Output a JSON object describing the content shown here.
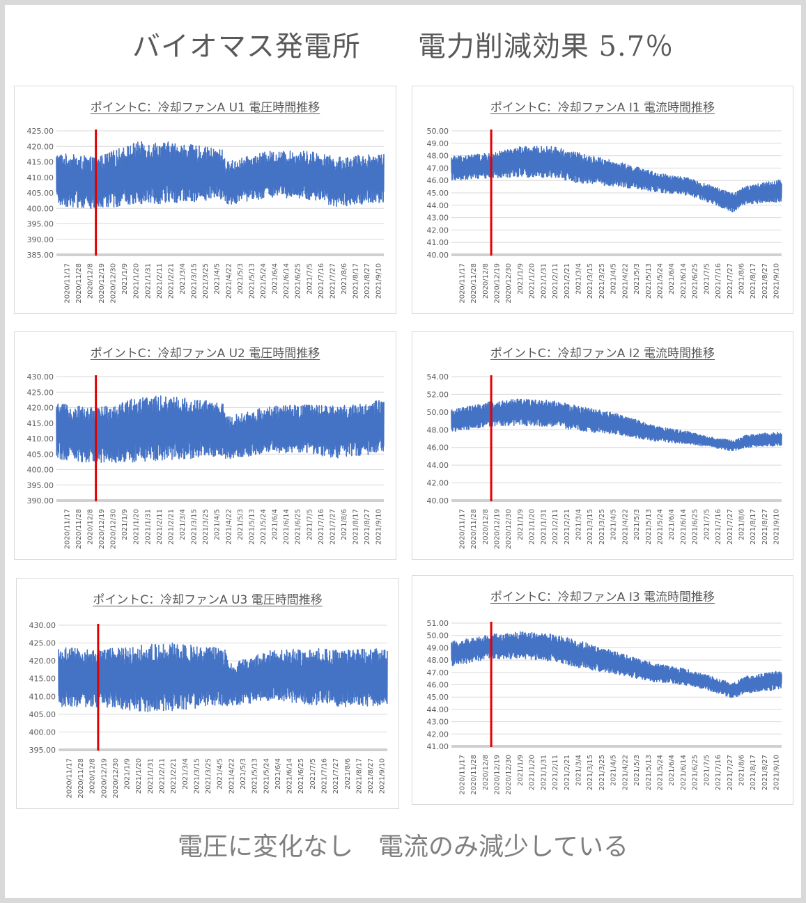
{
  "page": {
    "title": "バイオマス発電所　　電力削減効果 5.7％",
    "footer": "電圧に変化なし　電流のみ減少している"
  },
  "colors": {
    "series": "#4472c4",
    "marker": "#e00000",
    "grid": "#d9d9d9",
    "text": "#595959"
  },
  "chart_data": [
    {
      "type": "line",
      "title": "ポイントC：冷却ファンA U1 電圧時間推移",
      "yticks": [
        "385.00",
        "390.00",
        "395.00",
        "400.00",
        "405.00",
        "410.00",
        "415.00",
        "420.00",
        "425.00"
      ],
      "ylim": [
        385,
        425
      ],
      "x_tick_labels": [
        "2020/11/17",
        "2020/11/28",
        "2020/12/8",
        "2020/12/19",
        "2020/12/30",
        "2021/1/9",
        "2021/1/20",
        "2021/1/31",
        "2021/2/11",
        "2021/2/21",
        "2021/3/4",
        "2021/3/15",
        "2021/3/25",
        "2021/4/5",
        "2021/4/22",
        "2021/5/3",
        "2021/5/13",
        "2021/5/24",
        "2021/6/4",
        "2021/6/14",
        "2021/6/25",
        "2021/7/5",
        "2021/7/16",
        "2021/7/27",
        "2021/8/6",
        "2021/8/17",
        "2021/8/27",
        "2021/9/10"
      ],
      "marker_date": "2020/12/24",
      "series": [
        {
          "x": [
            "2020/11/17",
            "2020/12/24",
            "2021/1/31",
            "2021/3/4",
            "2021/4/22",
            "2021/4/25",
            "2021/6/4",
            "2021/7/16",
            "2021/8/6",
            "2021/9/20"
          ],
          "values": [
            409.5,
            408,
            411.5,
            411.5,
            411,
            408,
            411,
            410.5,
            408.5,
            410
          ],
          "range": [
            17,
            17,
            20,
            20,
            16,
            14,
            15,
            16,
            16,
            16
          ]
        }
      ]
    },
    {
      "type": "line",
      "title": "ポイントC：冷却ファンA I1 電流時間推移",
      "yticks": [
        "40.00",
        "41.00",
        "42.00",
        "43.00",
        "44.00",
        "45.00",
        "46.00",
        "47.00",
        "48.00",
        "49.00",
        "50.00"
      ],
      "ylim": [
        40,
        50
      ],
      "x_tick_labels": [
        "2020/11/17",
        "2020/11/28",
        "2020/12/8",
        "2020/12/19",
        "2020/12/30",
        "2021/1/9",
        "2021/1/20",
        "2021/1/31",
        "2021/2/11",
        "2021/2/21",
        "2021/3/4",
        "2021/3/15",
        "2021/3/25",
        "2021/4/5",
        "2021/4/22",
        "2021/5/3",
        "2021/5/13",
        "2021/5/24",
        "2021/6/4",
        "2021/6/14",
        "2021/6/25",
        "2021/7/5",
        "2021/7/16",
        "2021/7/27",
        "2021/8/6",
        "2021/8/17",
        "2021/8/27",
        "2021/9/10"
      ],
      "marker_date": "2020/12/24",
      "series": [
        {
          "x": [
            "2020/11/17",
            "2020/12/24",
            "2021/1/20",
            "2021/2/21",
            "2021/3/15",
            "2021/4/22",
            "2021/5/24",
            "2021/6/25",
            "2021/7/16",
            "2021/8/6",
            "2021/8/17",
            "2021/9/20"
          ],
          "values": [
            47,
            47.2,
            47.5,
            47.5,
            47,
            46.5,
            45.9,
            45.5,
            44.9,
            44.2,
            44.8,
            45.2
          ],
          "range": [
            2,
            2,
            2.5,
            2.5,
            2.5,
            2,
            1.6,
            1.4,
            1.4,
            1.6,
            1.5,
            1.8
          ]
        }
      ]
    },
    {
      "type": "line",
      "title": "ポイントC：冷却ファンA U2 電圧時間推移",
      "yticks": [
        "390.00",
        "395.00",
        "400.00",
        "405.00",
        "410.00",
        "415.00",
        "420.00",
        "425.00",
        "430.00"
      ],
      "ylim": [
        390,
        430
      ],
      "x_tick_labels": [
        "2020/11/17",
        "2020/11/28",
        "2020/12/8",
        "2020/12/19",
        "2020/12/30",
        "2021/1/9",
        "2021/1/20",
        "2021/1/31",
        "2021/2/11",
        "2021/2/21",
        "2021/3/4",
        "2021/3/15",
        "2021/3/25",
        "2021/4/5",
        "2021/4/22",
        "2021/5/3",
        "2021/5/13",
        "2021/5/24",
        "2021/6/4",
        "2021/6/14",
        "2021/6/25",
        "2021/7/5",
        "2021/7/16",
        "2021/7/27",
        "2021/8/6",
        "2021/8/17",
        "2021/8/27",
        "2021/9/10"
      ],
      "marker_date": "2020/12/24",
      "series": [
        {
          "x": [
            "2020/11/17",
            "2020/12/24",
            "2021/1/31",
            "2021/3/4",
            "2021/4/22",
            "2021/4/25",
            "2021/6/4",
            "2021/7/16",
            "2021/8/6",
            "2021/9/20"
          ],
          "values": [
            412.5,
            411,
            413,
            413.5,
            413,
            410,
            413,
            413,
            412,
            414
          ],
          "range": [
            18,
            18,
            21,
            21,
            17,
            14,
            15,
            16,
            17,
            17
          ]
        }
      ]
    },
    {
      "type": "line",
      "title": "ポイントC：冷却ファンA I2 電流時間推移",
      "yticks": [
        "40.00",
        "42.00",
        "44.00",
        "46.00",
        "48.00",
        "50.00",
        "52.00",
        "54.00"
      ],
      "ylim": [
        40,
        54
      ],
      "x_tick_labels": [
        "2020/11/17",
        "2020/11/28",
        "2020/12/8",
        "2020/12/19",
        "2020/12/30",
        "2021/1/9",
        "2021/1/20",
        "2021/1/31",
        "2021/2/11",
        "2021/2/21",
        "2021/3/4",
        "2021/3/15",
        "2021/3/25",
        "2021/4/5",
        "2021/4/22",
        "2021/5/3",
        "2021/5/13",
        "2021/5/24",
        "2021/6/4",
        "2021/6/14",
        "2021/6/25",
        "2021/7/5",
        "2021/7/16",
        "2021/7/27",
        "2021/8/6",
        "2021/8/17",
        "2021/8/27",
        "2021/9/10"
      ],
      "marker_date": "2020/12/24",
      "series": [
        {
          "x": [
            "2020/11/17",
            "2020/12/24",
            "2021/1/20",
            "2021/2/21",
            "2021/3/15",
            "2021/4/22",
            "2021/5/24",
            "2021/6/25",
            "2021/7/16",
            "2021/8/6",
            "2021/8/17",
            "2021/9/20"
          ],
          "values": [
            49,
            49.8,
            50,
            49.8,
            49.3,
            48.6,
            47.6,
            47.1,
            46.6,
            46.2,
            46.7,
            47
          ],
          "range": [
            2.5,
            2.8,
            3,
            3,
            2.8,
            2.4,
            1.8,
            1.4,
            1.2,
            1.2,
            1.4,
            1.6
          ]
        }
      ]
    },
    {
      "type": "line",
      "title": "ポイントC：冷却ファンA U3 電圧時間推移",
      "yticks": [
        "395.00",
        "400.00",
        "405.00",
        "410.00",
        "415.00",
        "420.00",
        "425.00",
        "430.00"
      ],
      "ylim": [
        395,
        430
      ],
      "x_tick_labels": [
        "2020/11/17",
        "2020/11/28",
        "2020/12/8",
        "2020/12/19",
        "2020/12/30",
        "2021/1/9",
        "2021/1/20",
        "2021/1/31",
        "2021/2/11",
        "2021/2/21",
        "2021/3/4",
        "2021/3/15",
        "2021/3/25",
        "2021/4/5",
        "2021/4/22",
        "2021/5/3",
        "2021/5/13",
        "2021/5/24",
        "2021/6/4",
        "2021/6/14",
        "2021/6/25",
        "2021/7/5",
        "2021/7/16",
        "2021/7/27",
        "2021/8/6",
        "2021/8/17",
        "2021/8/27",
        "2021/9/10"
      ],
      "marker_date": "2020/12/24",
      "series": [
        {
          "x": [
            "2020/11/17",
            "2020/12/24",
            "2021/1/31",
            "2021/3/4",
            "2021/4/22",
            "2021/4/25",
            "2021/6/4",
            "2021/7/16",
            "2021/8/6",
            "2021/9/20"
          ],
          "values": [
            415.5,
            415,
            415,
            415.5,
            415.5,
            413,
            416,
            415.5,
            415,
            415.5
          ],
          "range": [
            17,
            16,
            19,
            19,
            16,
            12,
            14,
            16,
            16,
            16
          ]
        }
      ]
    },
    {
      "type": "line",
      "title": "ポイントC：冷却ファンA I3 電流時間推移",
      "yticks": [
        "41.00",
        "42.00",
        "43.00",
        "44.00",
        "45.00",
        "46.00",
        "47.00",
        "48.00",
        "49.00",
        "50.00",
        "51.00"
      ],
      "ylim": [
        41,
        51
      ],
      "x_tick_labels": [
        "2020/11/17",
        "2020/11/28",
        "2020/12/8",
        "2020/12/19",
        "2020/12/30",
        "2021/1/9",
        "2021/1/20",
        "2021/1/31",
        "2021/2/11",
        "2021/2/21",
        "2021/3/4",
        "2021/3/15",
        "2021/3/25",
        "2021/4/5",
        "2021/4/22",
        "2021/5/3",
        "2021/5/13",
        "2021/5/24",
        "2021/6/4",
        "2021/6/14",
        "2021/6/25",
        "2021/7/5",
        "2021/7/16",
        "2021/7/27",
        "2021/8/6",
        "2021/8/17",
        "2021/8/27",
        "2021/9/10"
      ],
      "marker_date": "2020/12/24",
      "series": [
        {
          "x": [
            "2020/11/17",
            "2020/12/24",
            "2021/1/20",
            "2021/2/21",
            "2021/3/15",
            "2021/4/22",
            "2021/5/24",
            "2021/6/25",
            "2021/7/16",
            "2021/8/6",
            "2021/8/17",
            "2021/9/20"
          ],
          "values": [
            48.5,
            49.1,
            49.2,
            49,
            48.5,
            47.7,
            47,
            46.6,
            46.1,
            45.5,
            46,
            46.4
          ],
          "range": [
            2,
            2,
            2.2,
            2.2,
            2.2,
            1.8,
            1.5,
            1.3,
            1.2,
            1.2,
            1.4,
            1.5
          ]
        }
      ]
    }
  ]
}
